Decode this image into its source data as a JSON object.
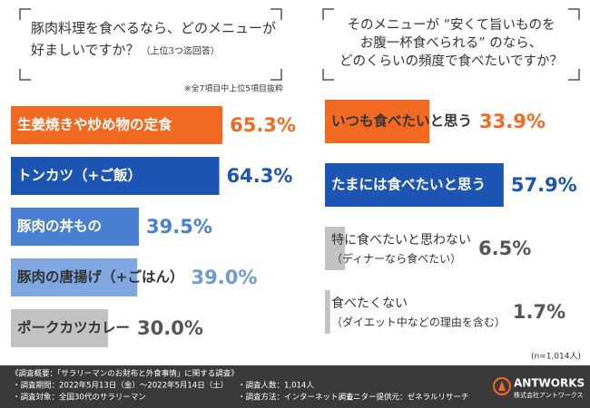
{
  "chart_data": [
    {
      "type": "bar",
      "orientation": "horizontal",
      "title": [
        "豚肉料理を食べるなら、どのメニューが",
        "好ましいですか？"
      ],
      "subtitle": "（上位3つ迄回答）",
      "note": "※全7項目中上位5項目抜粋",
      "categories": [
        [
          "生姜焼きや炒め物の定食"
        ],
        [
          "トンカツ（+ご飯）"
        ],
        [
          "豚肉の丼もの"
        ],
        [
          "豚肉の唐揚げ（+ごはん）"
        ],
        [
          "ポークカツカレー"
        ]
      ],
      "values": [
        65.3,
        64.3,
        39.5,
        39.0,
        30.0
      ],
      "value_labels": [
        "65.3%",
        "64.3%",
        "39.5%",
        "39.0%",
        "30.0%"
      ],
      "colors": [
        "#f26a21",
        "#1d55b4",
        "#4a80d2",
        "#7fa7e2",
        "#c2c2c2"
      ],
      "value_colors": [
        "#f26a21",
        "#1d55b4",
        "#4a80d2",
        "#6f9ad8",
        "#555555"
      ]
    },
    {
      "type": "bar",
      "orientation": "horizontal",
      "title": [
        "そのメニューが “安くて旨いものを",
        "お腹一杯食べられる” のなら、",
        "どのくらいの頻度で食べたいですか？"
      ],
      "note": "(n=1,014人)",
      "categories": [
        [
          "いつも食べたいと思う"
        ],
        [
          "たまには食べたいと思う"
        ],
        [
          "特に食べたいと思わない",
          "（ディナーなら食べたい）"
        ],
        [
          "食べたくない",
          "（ダイエット中などの理由を含む）"
        ]
      ],
      "values": [
        33.9,
        57.9,
        6.5,
        1.7
      ],
      "value_labels": [
        "33.9%",
        "57.9%",
        "6.5%",
        "1.7%"
      ],
      "colors": [
        "#f26a21",
        "#1d55b4",
        "#c2c2c2",
        "#c2c2c2"
      ],
      "value_colors": [
        "#f26a21",
        "#1d55b4",
        "#555555",
        "#555555"
      ]
    }
  ],
  "footer": {
    "title": "《調査概要：「サラリーマンのお財布と外食事情」に関する調査》",
    "items": [
      "・調査期間：2022年5月13日（金）〜2022年5月14日（土）",
      "・調査人数：1,014人",
      "・調査対象：全国30代のサラリーマン",
      "・調査方法：インターネット調査",
      "・モニター提供元：ゼネラルリサーチ"
    ],
    "logo": "ANTWORKS",
    "logo_sub": "株式会社アントワークス"
  }
}
